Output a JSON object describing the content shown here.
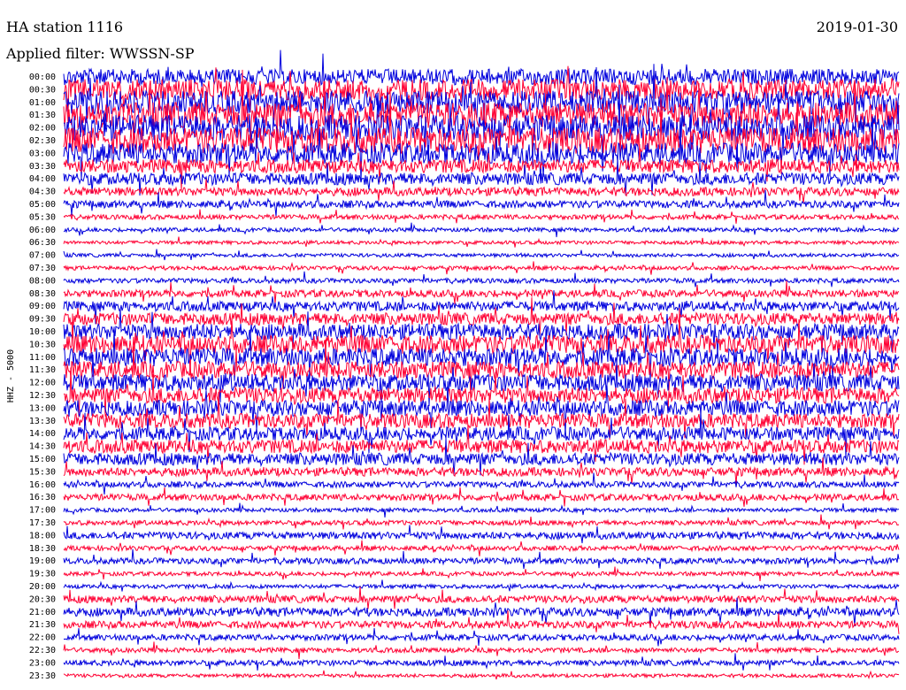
{
  "header": {
    "station": "HA station 1116",
    "date": "2019-01-30",
    "filter": "Applied filter: WWSSN-SP"
  },
  "chart_data": {
    "type": "line",
    "title": "HA station 1116",
    "date": "2019-01-30",
    "filter": "Applied filter: WWSSN-SP",
    "ylabel": "HHZ - 5000",
    "xlabel": "",
    "colors": [
      "#0000dd",
      "#ff0033"
    ],
    "rows": [
      {
        "time": "00:00",
        "color": "blue",
        "activity": 0.6
      },
      {
        "time": "00:30",
        "color": "red",
        "activity": 0.8
      },
      {
        "time": "01:00",
        "color": "blue",
        "activity": 0.9
      },
      {
        "time": "01:30",
        "color": "red",
        "activity": 1.0
      },
      {
        "time": "02:00",
        "color": "blue",
        "activity": 1.0
      },
      {
        "time": "02:30",
        "color": "red",
        "activity": 1.0
      },
      {
        "time": "03:00",
        "color": "blue",
        "activity": 0.8
      },
      {
        "time": "03:30",
        "color": "red",
        "activity": 0.5
      },
      {
        "time": "04:00",
        "color": "blue",
        "activity": 0.45
      },
      {
        "time": "04:30",
        "color": "red",
        "activity": 0.3
      },
      {
        "time": "05:00",
        "color": "blue",
        "activity": 0.25
      },
      {
        "time": "05:30",
        "color": "red",
        "activity": 0.15
      },
      {
        "time": "06:00",
        "color": "blue",
        "activity": 0.12
      },
      {
        "time": "06:30",
        "color": "red",
        "activity": 0.1
      },
      {
        "time": "07:00",
        "color": "blue",
        "activity": 0.1
      },
      {
        "time": "07:30",
        "color": "red",
        "activity": 0.12
      },
      {
        "time": "08:00",
        "color": "blue",
        "activity": 0.15
      },
      {
        "time": "08:30",
        "color": "red",
        "activity": 0.25
      },
      {
        "time": "09:00",
        "color": "blue",
        "activity": 0.35
      },
      {
        "time": "09:30",
        "color": "red",
        "activity": 0.45
      },
      {
        "time": "10:00",
        "color": "blue",
        "activity": 0.6
      },
      {
        "time": "10:30",
        "color": "red",
        "activity": 0.7
      },
      {
        "time": "11:00",
        "color": "blue",
        "activity": 0.7
      },
      {
        "time": "11:30",
        "color": "red",
        "activity": 0.65
      },
      {
        "time": "12:00",
        "color": "blue",
        "activity": 0.65
      },
      {
        "time": "12:30",
        "color": "red",
        "activity": 0.6
      },
      {
        "time": "13:00",
        "color": "blue",
        "activity": 0.6
      },
      {
        "time": "13:30",
        "color": "red",
        "activity": 0.55
      },
      {
        "time": "14:00",
        "color": "blue",
        "activity": 0.5
      },
      {
        "time": "14:30",
        "color": "red",
        "activity": 0.5
      },
      {
        "time": "15:00",
        "color": "blue",
        "activity": 0.45
      },
      {
        "time": "15:30",
        "color": "red",
        "activity": 0.3
      },
      {
        "time": "16:00",
        "color": "blue",
        "activity": 0.2
      },
      {
        "time": "16:30",
        "color": "red",
        "activity": 0.22
      },
      {
        "time": "17:00",
        "color": "blue",
        "activity": 0.12
      },
      {
        "time": "17:30",
        "color": "red",
        "activity": 0.15
      },
      {
        "time": "18:00",
        "color": "blue",
        "activity": 0.25
      },
      {
        "time": "18:30",
        "color": "red",
        "activity": 0.15
      },
      {
        "time": "19:00",
        "color": "blue",
        "activity": 0.2
      },
      {
        "time": "19:30",
        "color": "red",
        "activity": 0.12
      },
      {
        "time": "20:00",
        "color": "blue",
        "activity": 0.12
      },
      {
        "time": "20:30",
        "color": "red",
        "activity": 0.25
      },
      {
        "time": "21:00",
        "color": "blue",
        "activity": 0.3
      },
      {
        "time": "21:30",
        "color": "red",
        "activity": 0.25
      },
      {
        "time": "22:00",
        "color": "blue",
        "activity": 0.2
      },
      {
        "time": "22:30",
        "color": "red",
        "activity": 0.15
      },
      {
        "time": "23:00",
        "color": "blue",
        "activity": 0.18
      },
      {
        "time": "23:30",
        "color": "red",
        "activity": 0.1
      }
    ]
  }
}
